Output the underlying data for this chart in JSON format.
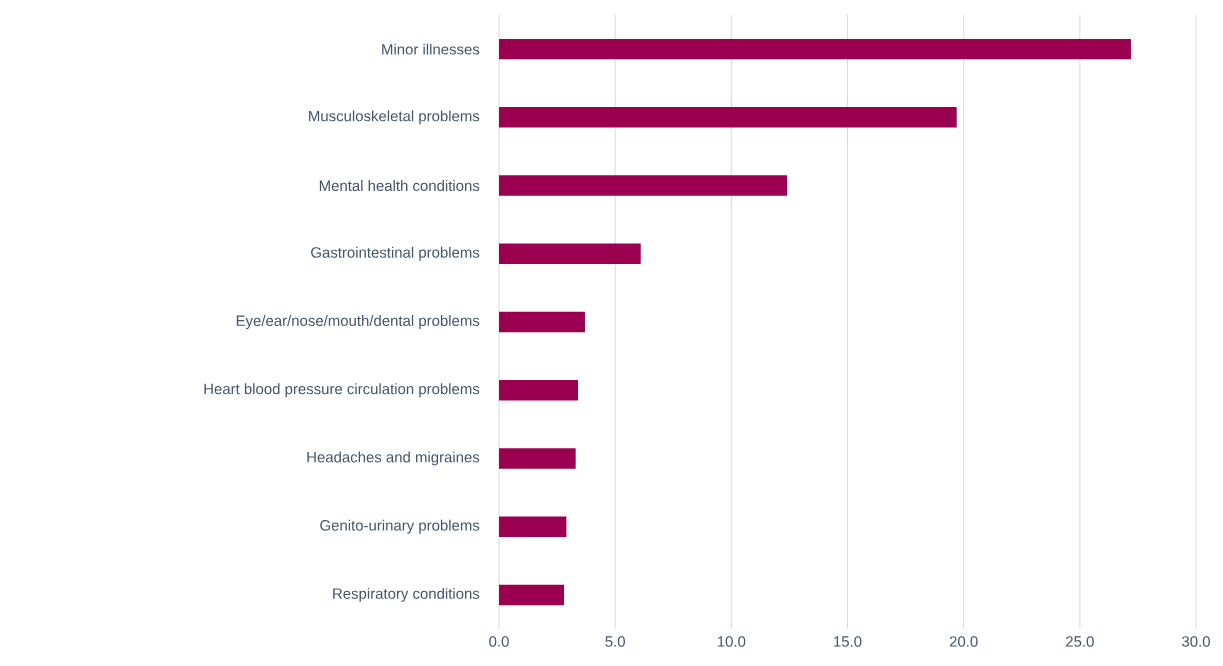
{
  "chart_data": {
    "type": "bar",
    "orientation": "horizontal",
    "categories": [
      "Minor illnesses",
      "Musculoskeletal problems",
      "Mental health conditions",
      "Gastrointestinal problems",
      "Eye/ear/nose/mouth/dental problems",
      "Heart blood pressure circulation problems",
      "Headaches and migraines",
      "Genito-urinary problems",
      "Respiratory conditions"
    ],
    "values": [
      27.2,
      19.7,
      12.4,
      6.1,
      3.7,
      3.4,
      3.3,
      2.9,
      2.8
    ],
    "color": "#9b0050",
    "xlim": [
      0,
      30
    ],
    "xticks": [
      {
        "value": 0,
        "label": "0.0"
      },
      {
        "value": 5,
        "label": "5.0"
      },
      {
        "value": 10,
        "label": "10.0"
      },
      {
        "value": 15,
        "label": "15.0"
      },
      {
        "value": 20,
        "label": "20.0"
      },
      {
        "value": 25,
        "label": "25.0"
      },
      {
        "value": 30,
        "label": "30.0"
      }
    ],
    "grid": "x"
  }
}
